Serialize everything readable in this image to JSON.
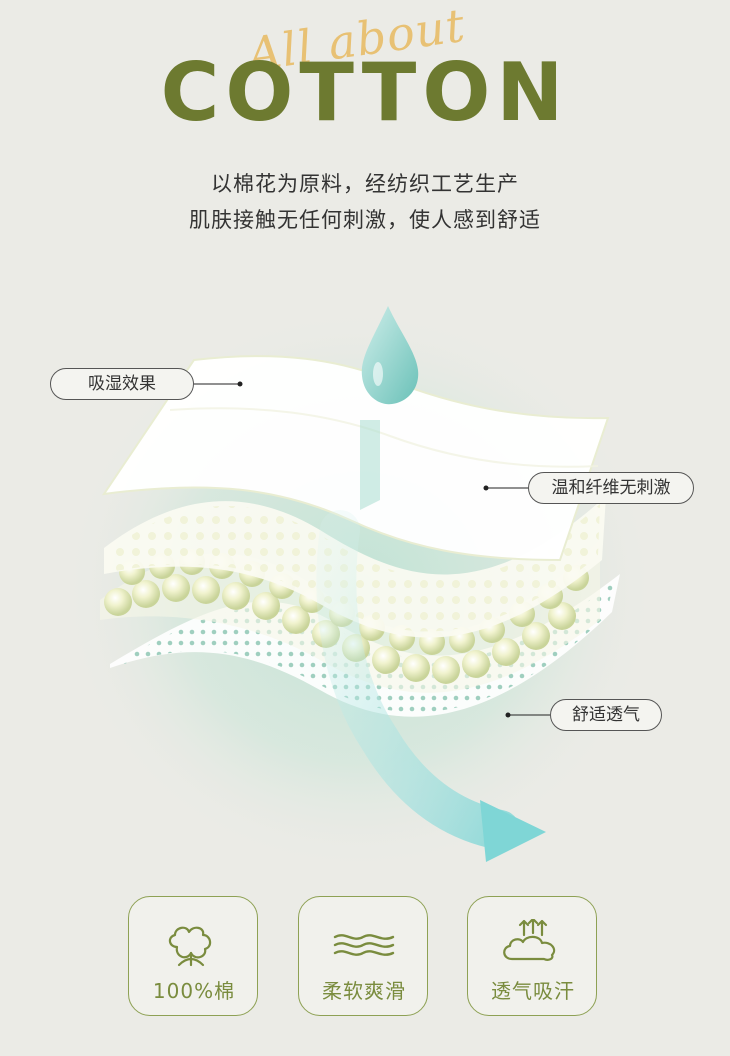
{
  "header": {
    "script_title": "All about",
    "title": "COTTON",
    "subtitle_line1": "以棉花为原料，经纺织工艺生产",
    "subtitle_line2": "肌肤接触无任何刺激，使人感到舒适"
  },
  "callouts": {
    "top": "吸湿效果",
    "middle": "温和纤维无刺激",
    "bottom": "舒适透气"
  },
  "features": [
    {
      "label": "100%棉",
      "icon": "cotton-flower-icon"
    },
    {
      "label": "柔软爽滑",
      "icon": "waves-icon"
    },
    {
      "label": "透气吸汗",
      "icon": "breathable-cloud-icon"
    }
  ],
  "colors": {
    "title": "#6d7a30",
    "script": "#e8bf6e",
    "feature": "#7a8c3e",
    "background": "#ebebe6"
  }
}
